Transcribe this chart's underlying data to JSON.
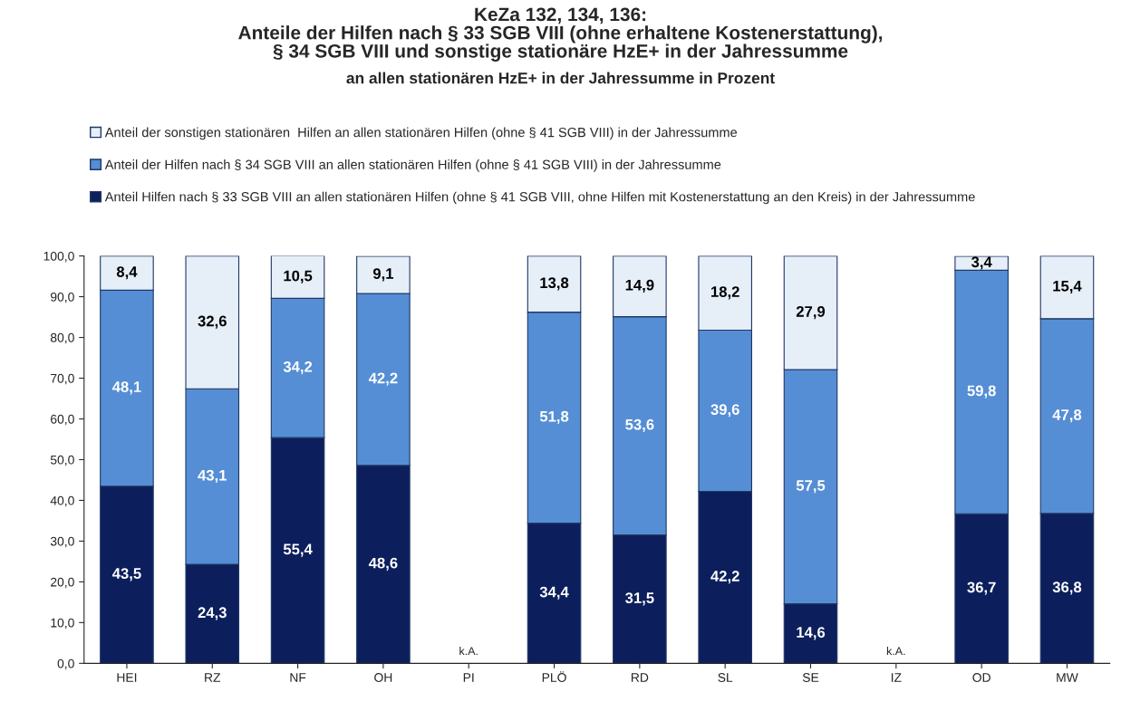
{
  "chart_data": {
    "type": "bar",
    "stacked": true,
    "title": "KeZa 132, 134, 136:\nAnteile der Hilfen nach § 33 SGB VIII (ohne erhaltene Kostenerstattung),\n§ 34 SGB VIII und sonstige stationäre HzE+ in der Jahressumme",
    "subtitle": "an allen stationären HzE+ in der Jahressumme in Prozent",
    "categories": [
      "HEI",
      "RZ",
      "NF",
      "OH",
      "PI",
      "PLÖ",
      "RD",
      "SL",
      "SE",
      "IZ",
      "OD",
      "MW"
    ],
    "series": [
      {
        "name": "Anteil Hilfen nach § 33 SGB VIII an allen stationären Hilfen (ohne § 41 SGB VIII, ohne Hilfen mit Kostenerstattung an den Kreis) in der Jahressumme",
        "color": "#0c1f5c",
        "values": [
          43.5,
          24.3,
          55.4,
          48.6,
          null,
          34.4,
          31.5,
          42.2,
          14.6,
          null,
          36.7,
          36.8
        ],
        "value_labels": [
          "43,5",
          "24,3",
          "55,4",
          "48,6",
          null,
          "34,4",
          "31,5",
          "42,2",
          "14,6",
          null,
          "36,7",
          "36,8"
        ]
      },
      {
        "name": "Anteil der Hilfen nach § 34 SGB VIII an allen stationären Hilfen (ohne § 41 SGB VIII) in der Jahressumme",
        "color": "#558ed5",
        "values": [
          48.1,
          43.1,
          34.2,
          42.2,
          null,
          51.8,
          53.6,
          39.6,
          57.5,
          null,
          59.8,
          47.8
        ],
        "value_labels": [
          "48,1",
          "43,1",
          "34,2",
          "42,2",
          null,
          "51,8",
          "53,6",
          "39,6",
          "57,5",
          null,
          "59,8",
          "47,8"
        ]
      },
      {
        "name": "Anteil der sonstigen stationären  Hilfen an allen stationären Hilfen (ohne § 41 SGB VIII) in der Jahressumme",
        "color": "#e6eef8",
        "values": [
          8.4,
          32.6,
          10.5,
          9.1,
          null,
          13.8,
          14.9,
          18.2,
          27.9,
          null,
          3.4,
          15.4
        ],
        "value_labels": [
          "8,4",
          "32,6",
          "10,5",
          "9,1",
          null,
          "13,8",
          "14,9",
          "18,2",
          "27,9",
          null,
          "3,4",
          "15,4"
        ]
      }
    ],
    "ylim": [
      0,
      100
    ],
    "yticks": [
      {
        "value": 0,
        "label": "0,0"
      },
      {
        "value": 10,
        "label": "10,0"
      },
      {
        "value": 20,
        "label": "20,0"
      },
      {
        "value": 30,
        "label": "30,0"
      },
      {
        "value": 40,
        "label": "40,0"
      },
      {
        "value": 50,
        "label": "50,0"
      },
      {
        "value": 60,
        "label": "60,0"
      },
      {
        "value": 70,
        "label": "70,0"
      },
      {
        "value": 80,
        "label": "80,0"
      },
      {
        "value": 90,
        "label": "90,0"
      },
      {
        "value": 100,
        "label": "100,0"
      }
    ],
    "annotations": [
      "k.A.",
      "k.A."
    ],
    "legend": "top",
    "grid": false
  }
}
